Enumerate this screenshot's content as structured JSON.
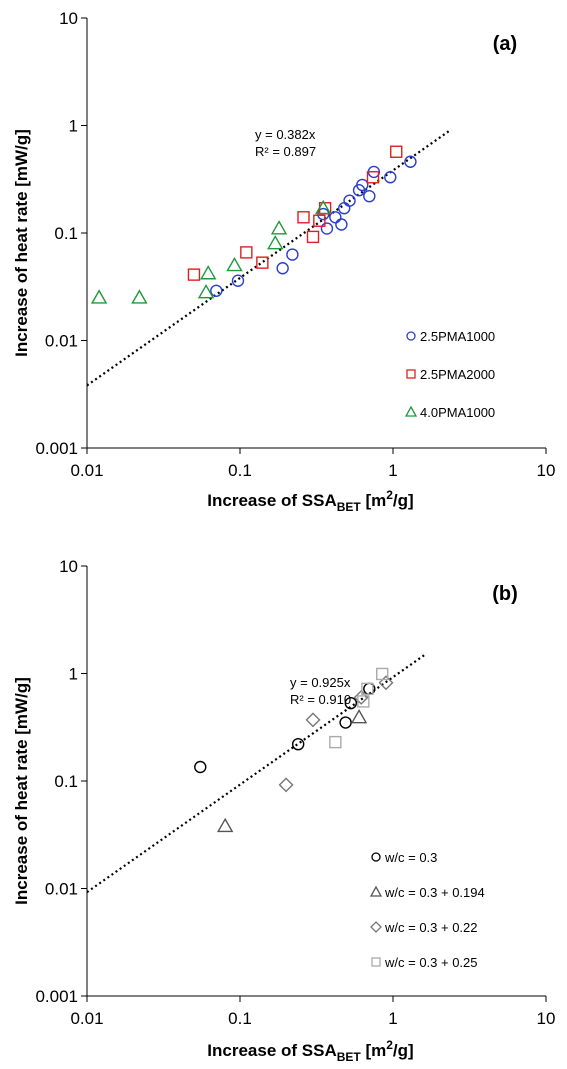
{
  "chart_data": [
    {
      "type": "scatter",
      "panel_label": "(a)",
      "xlabel": {
        "main": "Increase of SSA",
        "sub": "BET",
        "units": " [m",
        "sup": "2",
        "tail": "/g]"
      },
      "ylabel": "Increase of heat rate [mW/g]",
      "xscale": "log",
      "yscale": "log",
      "xlim": [
        0.01,
        10
      ],
      "ylim": [
        0.001,
        10
      ],
      "xticks": [
        0.01,
        0.1,
        1,
        10
      ],
      "xtick_labels": [
        "0.01",
        "0.1",
        "1",
        "10"
      ],
      "yticks": [
        0.001,
        0.01,
        0.1,
        1,
        10
      ],
      "ytick_labels": [
        "0.001",
        "0.01",
        "0.1",
        "1",
        "10"
      ],
      "legend_position": "bottom-right",
      "trendline": {
        "slope": 0.382,
        "x_range": [
          0.01,
          2.4
        ],
        "equation": "y = 0.382x",
        "r2": "R² = 0.897"
      },
      "series": [
        {
          "name": "2.5PMA1000",
          "marker": "circle",
          "color": "#2a3fd1",
          "points": [
            [
              0.07,
              0.029
            ],
            [
              0.097,
              0.036
            ],
            [
              0.19,
              0.047
            ],
            [
              0.22,
              0.063
            ],
            [
              0.37,
              0.11
            ],
            [
              0.35,
              0.15
            ],
            [
              0.42,
              0.14
            ],
            [
              0.46,
              0.12
            ],
            [
              0.48,
              0.17
            ],
            [
              0.52,
              0.2
            ],
            [
              0.6,
              0.25
            ],
            [
              0.63,
              0.28
            ],
            [
              0.7,
              0.22
            ],
            [
              0.75,
              0.37
            ],
            [
              0.96,
              0.33
            ],
            [
              1.3,
              0.46
            ]
          ]
        },
        {
          "name": "2.5PMA2000",
          "marker": "square",
          "color": "#e02020",
          "points": [
            [
              0.05,
              0.041
            ],
            [
              0.11,
              0.066
            ],
            [
              0.14,
              0.053
            ],
            [
              0.26,
              0.14
            ],
            [
              0.3,
              0.092
            ],
            [
              0.33,
              0.13
            ],
            [
              0.36,
              0.17
            ],
            [
              0.74,
              0.33
            ],
            [
              1.05,
              0.57
            ]
          ]
        },
        {
          "name": "4.0PMA1000",
          "marker": "triangle",
          "color": "#1f9a3a",
          "points": [
            [
              0.012,
              0.025
            ],
            [
              0.022,
              0.025
            ],
            [
              0.06,
              0.028
            ],
            [
              0.062,
              0.042
            ],
            [
              0.092,
              0.05
            ],
            [
              0.17,
              0.08
            ],
            [
              0.18,
              0.11
            ],
            [
              0.35,
              0.17
            ]
          ]
        }
      ]
    },
    {
      "type": "scatter",
      "panel_label": "(b)",
      "xlabel": {
        "main": "Increase of SSA",
        "sub": "BET",
        "units": " [m",
        "sup": "2",
        "tail": "/g]"
      },
      "ylabel": "Increase of heat rate [mW/g]",
      "xscale": "log",
      "yscale": "log",
      "xlim": [
        0.01,
        10
      ],
      "ylim": [
        0.001,
        10
      ],
      "xticks": [
        0.01,
        0.1,
        1,
        10
      ],
      "xtick_labels": [
        "0.01",
        "0.1",
        "1",
        "10"
      ],
      "yticks": [
        0.001,
        0.01,
        0.1,
        1,
        10
      ],
      "ytick_labels": [
        "0.001",
        "0.01",
        "0.1",
        "1",
        "10"
      ],
      "legend_position": "bottom-right",
      "trendline": {
        "slope": 0.925,
        "x_range": [
          0.01,
          1.65
        ],
        "equation": "y = 0.925x",
        "r2": "R² = 0.910"
      },
      "series": [
        {
          "name": "w/c = 0.3",
          "marker": "circle",
          "color": "#000000",
          "points": [
            [
              0.055,
              0.135
            ],
            [
              0.24,
              0.22
            ],
            [
              0.49,
              0.35
            ],
            [
              0.53,
              0.53
            ],
            [
              0.7,
              0.72
            ]
          ]
        },
        {
          "name": "w/c = 0.3 + 0.194",
          "marker": "triangle",
          "color": "#555555",
          "points": [
            [
              0.08,
              0.038
            ],
            [
              0.6,
              0.39
            ]
          ]
        },
        {
          "name": "w/c = 0.3 + 0.22",
          "marker": "diamond",
          "color": "#777777",
          "points": [
            [
              0.2,
              0.092
            ],
            [
              0.3,
              0.37
            ],
            [
              0.62,
              0.6
            ],
            [
              0.9,
              0.82
            ]
          ]
        },
        {
          "name": "w/c = 0.3 + 0.25",
          "marker": "square",
          "color": "#aaaaaa",
          "points": [
            [
              0.42,
              0.23
            ],
            [
              0.64,
              0.55
            ],
            [
              0.68,
              0.72
            ],
            [
              0.85,
              0.99
            ]
          ]
        }
      ]
    }
  ]
}
